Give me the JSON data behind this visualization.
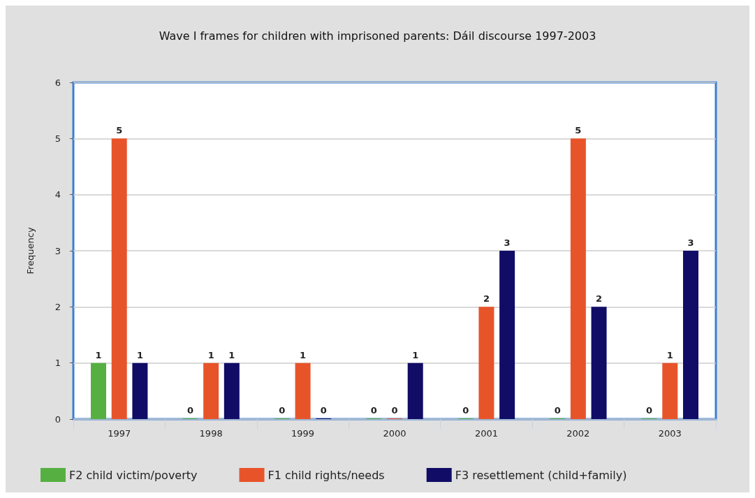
{
  "chart_data": {
    "type": "bar",
    "title": "Wave I frames for children with imprisoned parents: Dáil discourse 1997-2003",
    "ylabel": "Frequency",
    "categories": [
      "1997",
      "1998",
      "1999",
      "2000",
      "2001",
      "2002",
      "2003"
    ],
    "series": [
      {
        "name": "F2 child victim/poverty",
        "color": "#56b041",
        "values": [
          1,
          0,
          0,
          0,
          0,
          0,
          0
        ]
      },
      {
        "name": "F1 child rights/needs",
        "color": "#e8542a",
        "values": [
          5,
          1,
          1,
          0,
          2,
          5,
          1
        ]
      },
      {
        "name": "F3 resettlement (child+family)",
        "color": "#110c66",
        "values": [
          1,
          1,
          0,
          1,
          3,
          2,
          3
        ]
      }
    ],
    "ylim": [
      0,
      6
    ],
    "yticks": [
      0,
      1,
      2,
      3,
      4,
      5,
      6
    ],
    "grid": "y",
    "legend": "bottom",
    "data_labels": true
  }
}
